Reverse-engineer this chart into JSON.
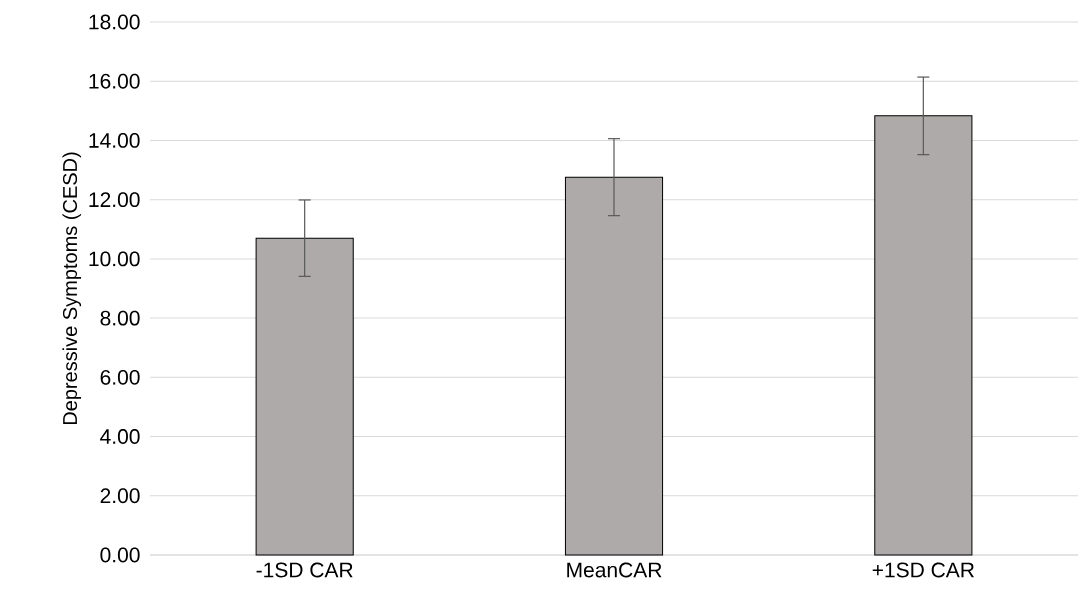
{
  "chart_data": {
    "type": "bar",
    "ylabel": "Depressive Symptoms (CESD)",
    "categories": [
      "-1SD CAR",
      "MeanCAR",
      "+1SD CAR"
    ],
    "values": [
      10.7,
      12.76,
      14.83
    ],
    "errors": [
      1.29,
      1.3,
      1.31
    ],
    "color": "#aeaaaa",
    "ylim": [
      0,
      18
    ],
    "yticks": [
      {
        "value": 0,
        "label": "0.00"
      },
      {
        "value": 2,
        "label": "2.00"
      },
      {
        "value": 4,
        "label": "4.00"
      },
      {
        "value": 6,
        "label": "6.00"
      },
      {
        "value": 8,
        "label": "8.00"
      },
      {
        "value": 10,
        "label": "10.00"
      },
      {
        "value": 12,
        "label": "12.00"
      },
      {
        "value": 14,
        "label": "14.00"
      },
      {
        "value": 16,
        "label": "16.00"
      },
      {
        "value": 18,
        "label": "18.00"
      }
    ],
    "grid": "y"
  }
}
